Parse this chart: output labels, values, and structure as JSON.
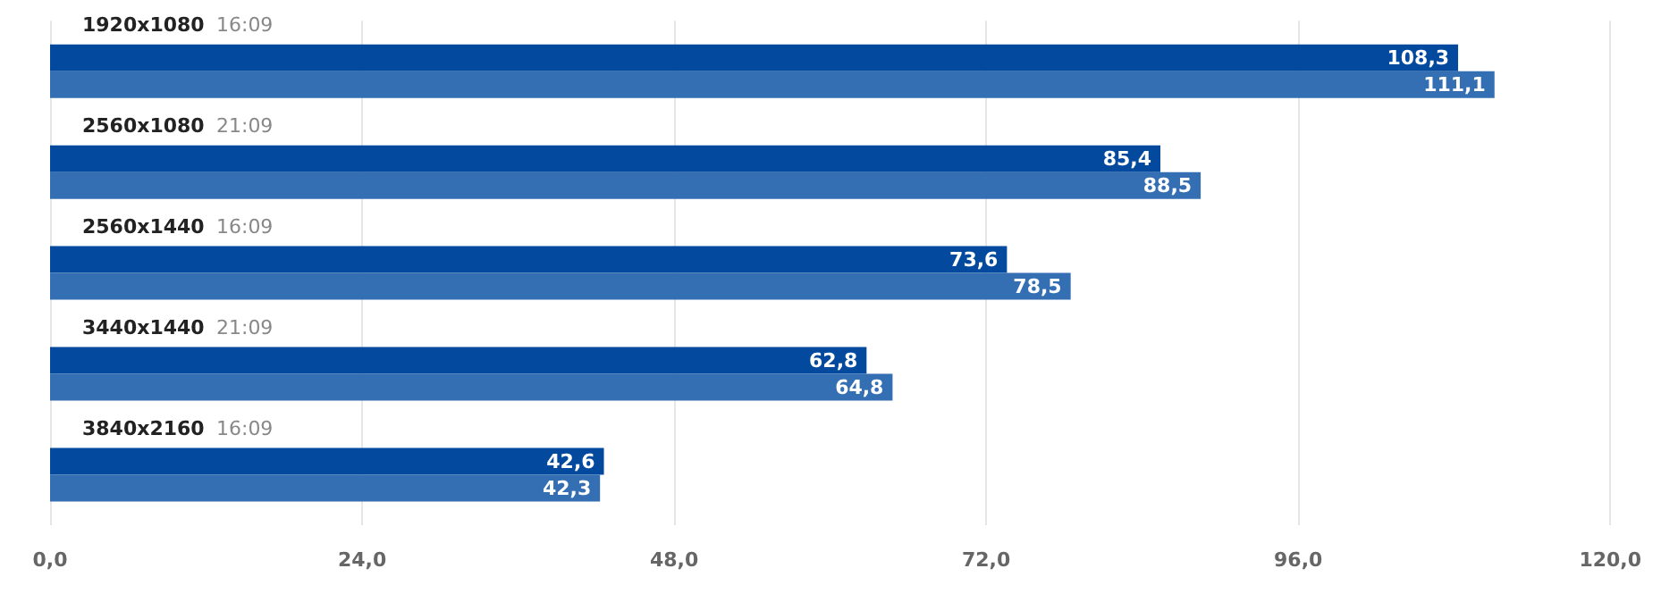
{
  "chart_data": {
    "type": "bar",
    "orientation": "horizontal",
    "categories": [
      "1920x1080 16:09",
      "2560x1080 21:09",
      "2560x1440 16:09",
      "3440x1440 21:09",
      "3840x2160 16:09"
    ],
    "series": [
      {
        "color": "#034a9e",
        "values": [
          108.3,
          85.4,
          73.6,
          62.8,
          42.6
        ],
        "value_labels": [
          "108,3",
          "85,4",
          "73,6",
          "62,8",
          "42,6"
        ]
      },
      {
        "color": "#346fb4",
        "values": [
          111.1,
          88.5,
          78.5,
          64.8,
          42.3
        ],
        "value_labels": [
          "111,1",
          "88,5",
          "78,5",
          "64,8",
          "42,3"
        ]
      }
    ],
    "xlim": [
      0,
      120
    ],
    "xticks": [
      {
        "value": 0,
        "label": "0,0"
      },
      {
        "value": 24,
        "label": "24,0"
      },
      {
        "value": 48,
        "label": "48,0"
      },
      {
        "value": 72,
        "label": "72,0"
      },
      {
        "value": 96,
        "label": "96,0"
      },
      {
        "value": 120,
        "label": "120,0"
      }
    ],
    "grid": "x"
  }
}
